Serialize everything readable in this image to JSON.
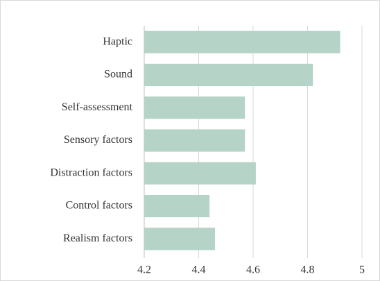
{
  "chart_data": {
    "type": "barh",
    "categories": [
      "Haptic",
      "Sound",
      "Self-assessment",
      "Sensory factors",
      "Distraction factors",
      "Control factors",
      "Realism factors"
    ],
    "values": [
      4.92,
      4.82,
      4.57,
      4.57,
      4.61,
      4.44,
      4.46
    ],
    "color": "#b5d3c7",
    "xlim": [
      4.2,
      5
    ],
    "xticks": [
      4.2,
      4.4,
      4.6,
      4.8,
      5
    ],
    "grid": true
  }
}
